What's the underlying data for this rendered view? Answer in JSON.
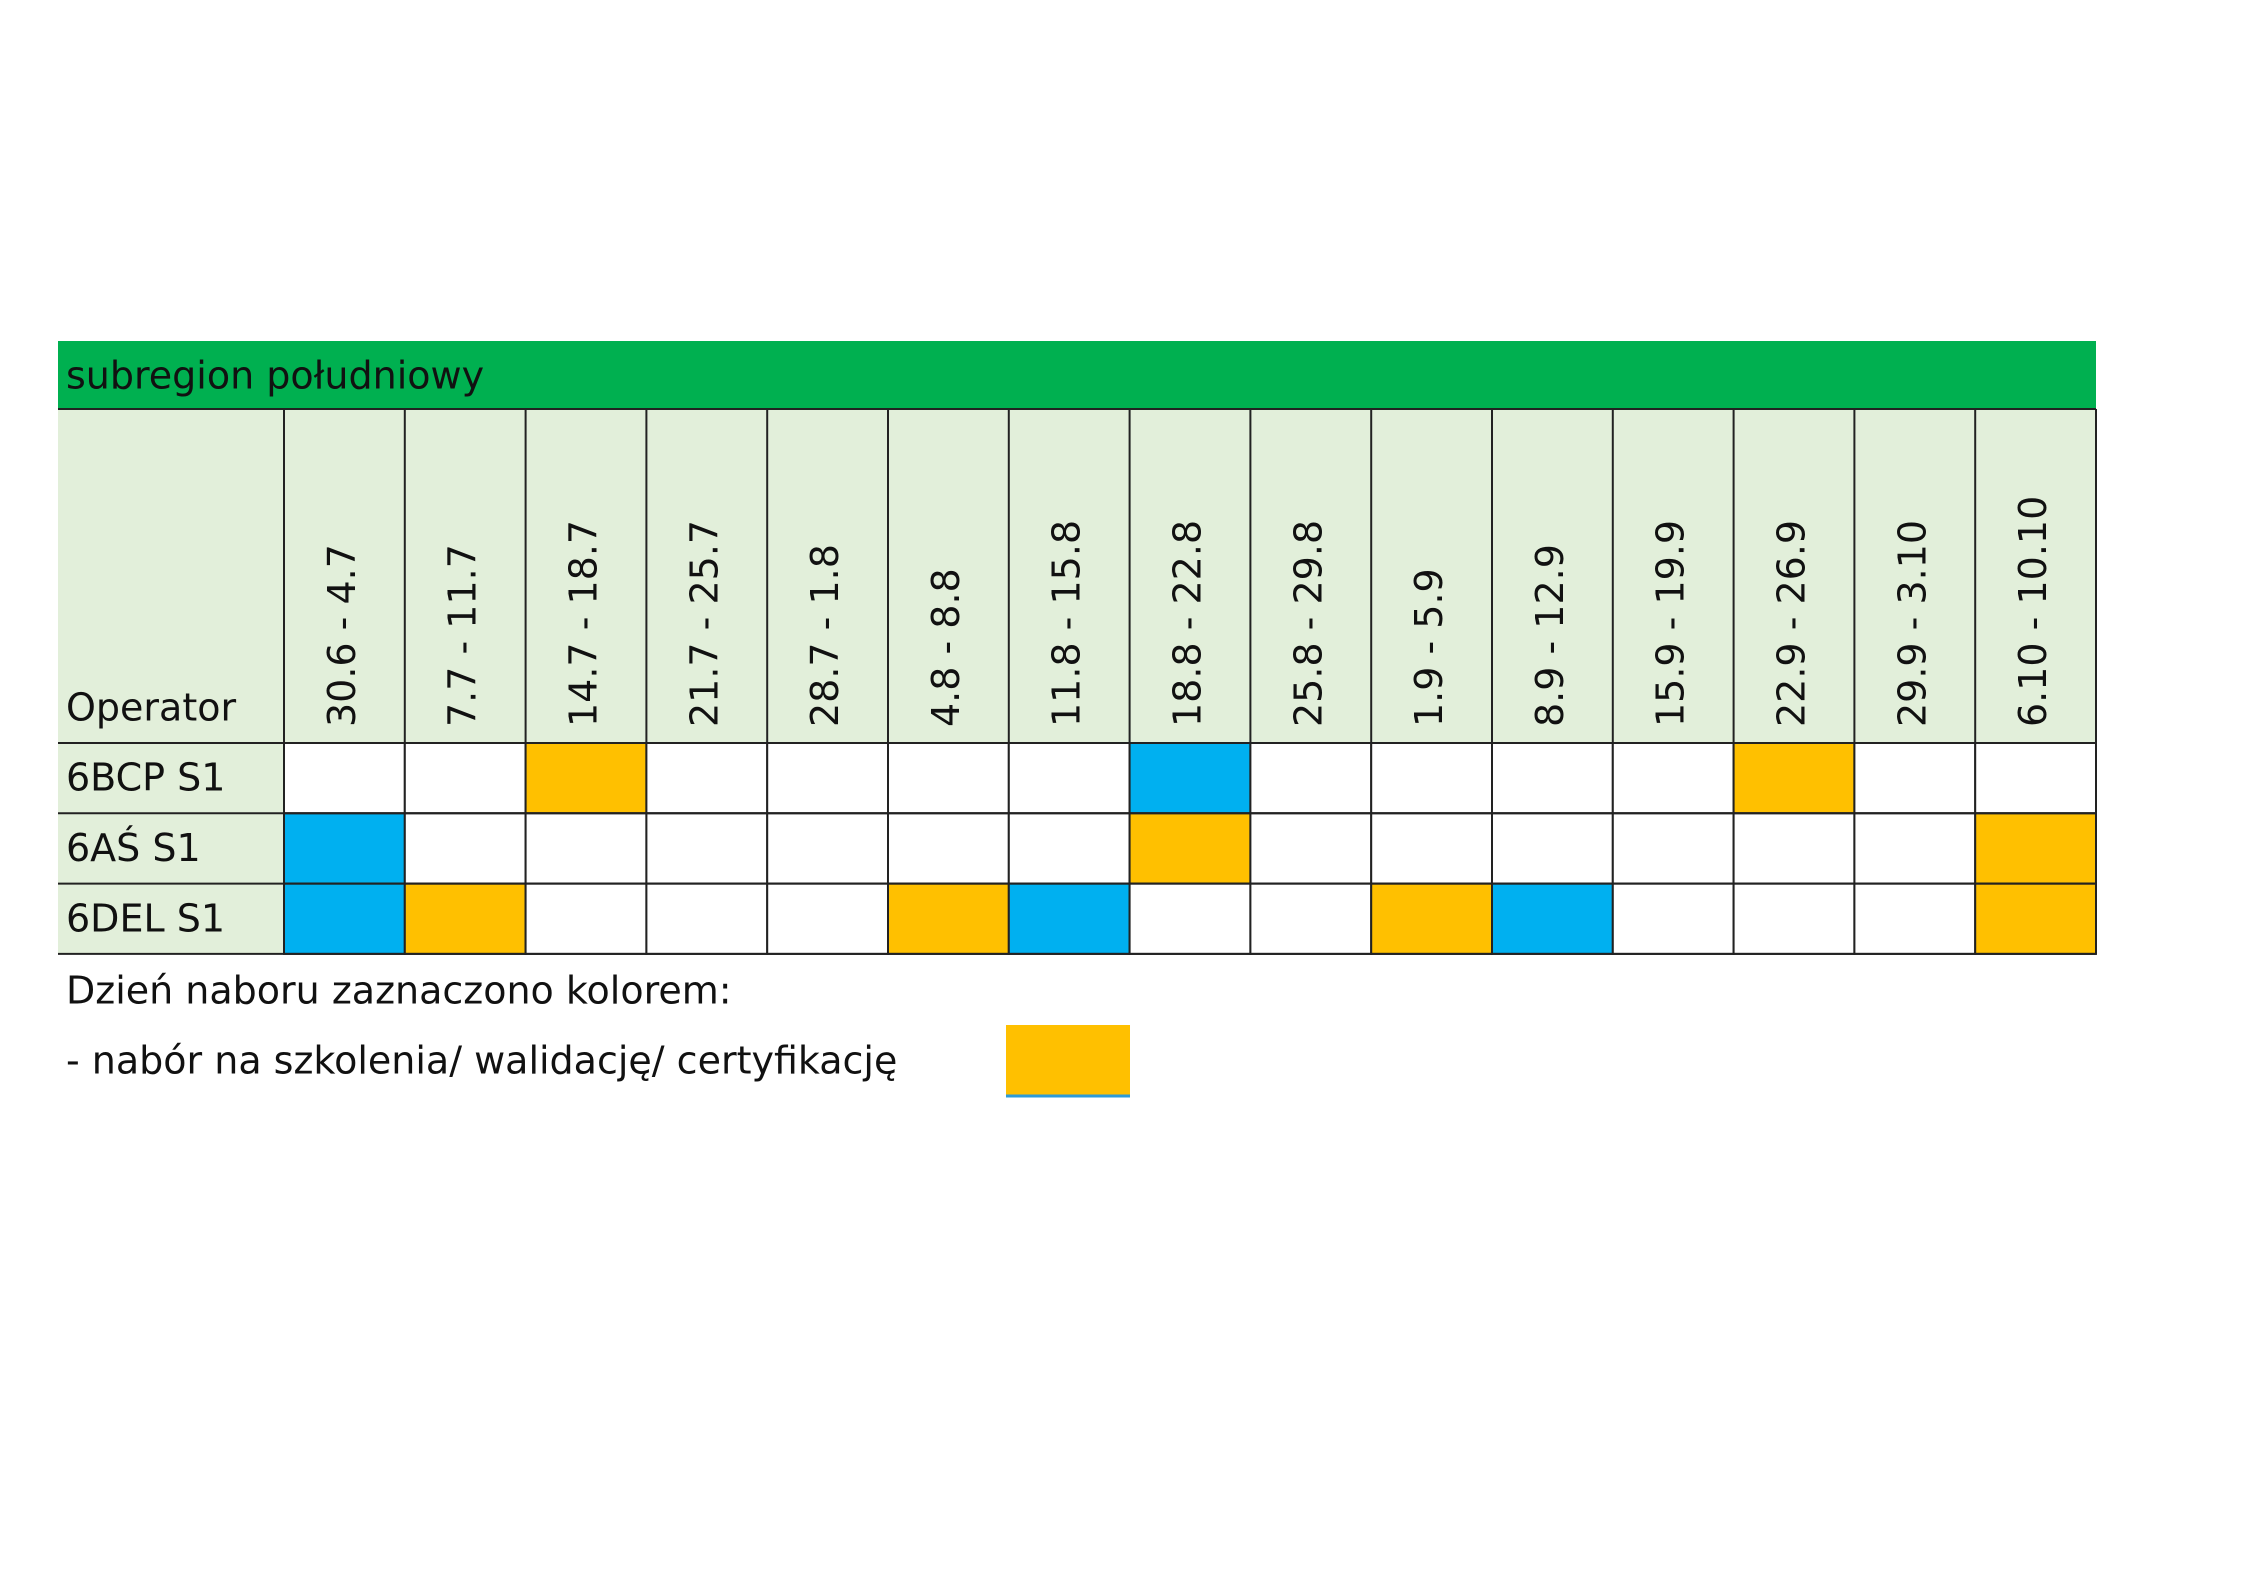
{
  "table": {
    "title": "subregion południowy",
    "header": "Operator",
    "columns": [
      "30.6 - 4.7",
      "7.7 - 11.7",
      "14.7 - 18.7",
      "21.7 - 25.7",
      "28.7 - 1.8",
      "4.8 - 8.8",
      "11.8 - 15.8",
      "18.8 - 22.8",
      "25.8 - 29.8",
      "1.9 - 5.9",
      "8.9 - 12.9",
      "15.9 - 19.9",
      "22.9 - 26.9",
      "29.9 - 3.10",
      "6.10 - 10.10"
    ],
    "rows": [
      {
        "label": "6BCP S1",
        "cells": [
          null,
          null,
          "#ffc000",
          null,
          null,
          null,
          null,
          "#00b0f0",
          null,
          null,
          null,
          null,
          "#ffc000",
          null,
          null
        ]
      },
      {
        "label": "6AŚ S1",
        "cells": [
          "#00b0f0",
          null,
          null,
          null,
          null,
          null,
          null,
          "#ffc000",
          null,
          null,
          null,
          null,
          null,
          null,
          "#ffc000"
        ]
      },
      {
        "label": "6DEL S1",
        "cells": [
          "#00b0f0",
          "#ffc000",
          null,
          null,
          null,
          "#ffc000",
          "#00b0f0",
          null,
          null,
          "#ffc000",
          "#00b0f0",
          null,
          null,
          null,
          "#ffc000"
        ]
      }
    ]
  },
  "legend": {
    "heading": "Dzień naboru zaznaczono kolorem:",
    "item": "- nabór na szkolenia/ walidację/ certyfikację"
  }
}
